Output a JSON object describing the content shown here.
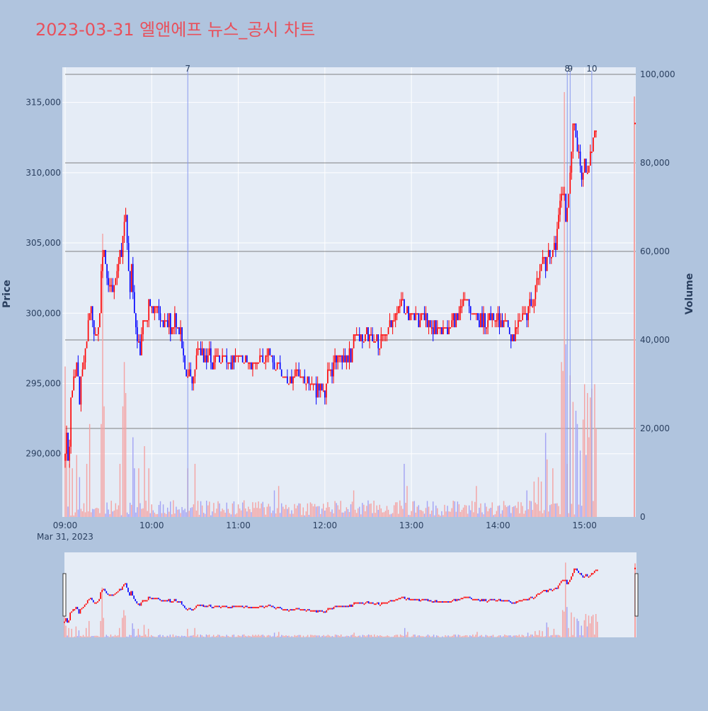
{
  "title": "2023-03-31 엘앤에프 뉴스_공시 차트",
  "colors": {
    "background": "#b0c4de",
    "plot_bg": "#e5ecf6",
    "title": "#e8505b",
    "up": "#ff0000",
    "down": "#0000ff",
    "up_volume": "#f4a3a3",
    "down_volume": "#a3a3f4",
    "news_line": "#8899ee",
    "hline": "#666666"
  },
  "chart_data": {
    "type": "candlestick",
    "title": "2023-03-31 엘앤에프 뉴스_공시 차트",
    "ylabel": "Price",
    "y2label": "Volume",
    "date_label": "Mar 31, 2023",
    "x_ticks": [
      "09:00",
      "10:00",
      "11:00",
      "12:00",
      "13:00",
      "14:00",
      "15:00"
    ],
    "y_ticks": [
      {
        "value": 290000,
        "label": "290,000"
      },
      {
        "value": 295000,
        "label": "295,000"
      },
      {
        "value": 300000,
        "label": "300,000"
      },
      {
        "value": 305000,
        "label": "305,000"
      },
      {
        "value": 310000,
        "label": "310,000"
      },
      {
        "value": 315000,
        "label": "315,000"
      }
    ],
    "y2_ticks": [
      {
        "value": 0,
        "label": "0"
      },
      {
        "value": 20000,
        "label": "20,000"
      },
      {
        "value": 40000,
        "label": "40,000"
      },
      {
        "value": 60000,
        "label": "60,000"
      },
      {
        "value": 80000,
        "label": "80,000"
      },
      {
        "value": 100000,
        "label": "100,000"
      }
    ],
    "ylim": [
      285500,
      317500
    ],
    "y2lim": [
      0,
      100000
    ],
    "xlim_minutes": [
      0,
      395
    ],
    "volume_gridlines": [
      20000,
      40000,
      60000,
      80000,
      100000
    ],
    "price_path": [
      [
        "09:00",
        290000
      ],
      [
        "09:01",
        292000
      ],
      [
        "09:02",
        289000
      ],
      [
        "09:03",
        291000
      ],
      [
        "09:04",
        294500
      ],
      [
        "09:06",
        295000
      ],
      [
        "09:08",
        296500
      ],
      [
        "09:10",
        294000
      ],
      [
        "09:12",
        296000
      ],
      [
        "09:14",
        297500
      ],
      [
        "09:16",
        299500
      ],
      [
        "09:18",
        300000
      ],
      [
        "09:20",
        299000
      ],
      [
        "09:22",
        298500
      ],
      [
        "09:24",
        299500
      ],
      [
        "09:25",
        303000
      ],
      [
        "09:27",
        304500
      ],
      [
        "09:29",
        303000
      ],
      [
        "09:31",
        302000
      ],
      [
        "09:33",
        301000
      ],
      [
        "09:35",
        302500
      ],
      [
        "09:37",
        303500
      ],
      [
        "09:39",
        304500
      ],
      [
        "09:41",
        306500
      ],
      [
        "09:42",
        307000
      ],
      [
        "09:43",
        305000
      ],
      [
        "09:44",
        303000
      ],
      [
        "09:45",
        302000
      ],
      [
        "09:46",
        303500
      ],
      [
        "09:47",
        302000
      ],
      [
        "09:48",
        300000
      ],
      [
        "09:49",
        299000
      ],
      [
        "09:50",
        298000
      ],
      [
        "09:52",
        297500
      ],
      [
        "09:54",
        299000
      ],
      [
        "09:56",
        299000
      ],
      [
        "09:58",
        301000
      ],
      [
        "10:00",
        300500
      ],
      [
        "10:02",
        300000
      ],
      [
        "10:04",
        300500
      ],
      [
        "10:06",
        299500
      ],
      [
        "10:08",
        299000
      ],
      [
        "10:10",
        299500
      ],
      [
        "10:12",
        299500
      ],
      [
        "10:14",
        298500
      ],
      [
        "10:16",
        299500
      ],
      [
        "10:18",
        299000
      ],
      [
        "10:20",
        298500
      ],
      [
        "10:22",
        296500
      ],
      [
        "10:24",
        295500
      ],
      [
        "10:26",
        296000
      ],
      [
        "10:28",
        295500
      ],
      [
        "10:30",
        296000
      ],
      [
        "10:32",
        297500
      ],
      [
        "10:34",
        297000
      ],
      [
        "10:36",
        297000
      ],
      [
        "10:38",
        296500
      ],
      [
        "10:40",
        297000
      ],
      [
        "10:42",
        296000
      ],
      [
        "10:44",
        296500
      ],
      [
        "10:46",
        297500
      ],
      [
        "10:48",
        296500
      ],
      [
        "10:50",
        297000
      ],
      [
        "10:55",
        296500
      ],
      [
        "11:00",
        297000
      ],
      [
        "11:05",
        296500
      ],
      [
        "11:10",
        296500
      ],
      [
        "11:15",
        297000
      ],
      [
        "11:20",
        296500
      ],
      [
        "11:22",
        297500
      ],
      [
        "11:25",
        296000
      ],
      [
        "11:28",
        296500
      ],
      [
        "11:30",
        295500
      ],
      [
        "11:33",
        295500
      ],
      [
        "11:35",
        295000
      ],
      [
        "11:40",
        296000
      ],
      [
        "11:45",
        295500
      ],
      [
        "11:50",
        295000
      ],
      [
        "11:55",
        294500
      ],
      [
        "12:00",
        294500
      ],
      [
        "12:02",
        295500
      ],
      [
        "12:05",
        296000
      ],
      [
        "12:08",
        296500
      ],
      [
        "12:12",
        297000
      ],
      [
        "12:15",
        297000
      ],
      [
        "12:18",
        297000
      ],
      [
        "12:20",
        298000
      ],
      [
        "12:22",
        298500
      ],
      [
        "12:25",
        298500
      ],
      [
        "12:28",
        298500
      ],
      [
        "12:32",
        298500
      ],
      [
        "12:35",
        298000
      ],
      [
        "12:40",
        298000
      ],
      [
        "12:45",
        299000
      ],
      [
        "12:48",
        299500
      ],
      [
        "12:50",
        300000
      ],
      [
        "12:53",
        301500
      ],
      [
        "12:55",
        300500
      ],
      [
        "12:58",
        300000
      ],
      [
        "13:00",
        300000
      ],
      [
        "13:05",
        299500
      ],
      [
        "13:10",
        299500
      ],
      [
        "13:15",
        299000
      ],
      [
        "13:20",
        299000
      ],
      [
        "13:25",
        299000
      ],
      [
        "13:30",
        299500
      ],
      [
        "13:33",
        300000
      ],
      [
        "13:36",
        301000
      ],
      [
        "13:40",
        300500
      ],
      [
        "13:45",
        299500
      ],
      [
        "13:50",
        299500
      ],
      [
        "13:55",
        299500
      ],
      [
        "14:00",
        299500
      ],
      [
        "14:05",
        299500
      ],
      [
        "14:08",
        299000
      ],
      [
        "14:10",
        298000
      ],
      [
        "14:12",
        298500
      ],
      [
        "14:15",
        299500
      ],
      [
        "14:18",
        300000
      ],
      [
        "14:20",
        300000
      ],
      [
        "14:22",
        300500
      ],
      [
        "14:25",
        301500
      ],
      [
        "14:28",
        303000
      ],
      [
        "14:30",
        303500
      ],
      [
        "14:33",
        303500
      ],
      [
        "14:35",
        304000
      ],
      [
        "14:38",
        304500
      ],
      [
        "14:40",
        305000
      ],
      [
        "14:42",
        306500
      ],
      [
        "14:44",
        309000
      ],
      [
        "14:46",
        308500
      ],
      [
        "14:47",
        306000
      ],
      [
        "14:48",
        307000
      ],
      [
        "14:50",
        310000
      ],
      [
        "14:52",
        313500
      ],
      [
        "14:54",
        312500
      ],
      [
        "14:56",
        311000
      ],
      [
        "14:58",
        310000
      ],
      [
        "15:00",
        310500
      ],
      [
        "15:02",
        310000
      ],
      [
        "15:04",
        311000
      ],
      [
        "15:06",
        312500
      ],
      [
        "15:08",
        313000
      ]
    ],
    "volume_spikes": [
      [
        "09:00",
        34000
      ],
      [
        "09:01",
        15000
      ],
      [
        "09:03",
        12000
      ],
      [
        "09:05",
        11000
      ],
      [
        "09:08",
        14000
      ],
      [
        "09:10",
        9000
      ],
      [
        "09:15",
        12000
      ],
      [
        "09:17",
        21000
      ],
      [
        "09:25",
        21000
      ],
      [
        "09:26",
        64000
      ],
      [
        "09:27",
        25000
      ],
      [
        "09:38",
        12000
      ],
      [
        "09:40",
        25000
      ],
      [
        "09:41",
        35000
      ],
      [
        "09:42",
        28000
      ],
      [
        "09:47",
        18000
      ],
      [
        "09:48",
        11000
      ],
      [
        "09:51",
        11000
      ],
      [
        "09:55",
        16000
      ],
      [
        "09:58",
        11000
      ],
      [
        "10:25",
        11000
      ],
      [
        "10:30",
        12000
      ],
      [
        "11:25",
        6000
      ],
      [
        "11:28",
        7000
      ],
      [
        "12:20",
        6000
      ],
      [
        "12:55",
        12000
      ],
      [
        "12:57",
        7000
      ],
      [
        "13:45",
        7000
      ],
      [
        "14:20",
        6000
      ],
      [
        "14:25",
        8000
      ],
      [
        "14:28",
        9000
      ],
      [
        "14:30",
        8000
      ],
      [
        "14:33",
        19000
      ],
      [
        "14:34",
        13000
      ],
      [
        "14:38",
        11000
      ],
      [
        "14:44",
        35000
      ],
      [
        "14:45",
        33000
      ],
      [
        "14:46",
        96000
      ],
      [
        "14:47",
        39000
      ],
      [
        "14:48",
        12000
      ],
      [
        "14:50",
        32000
      ],
      [
        "14:52",
        26000
      ],
      [
        "14:54",
        24000
      ],
      [
        "14:55",
        21000
      ],
      [
        "14:57",
        15000
      ],
      [
        "14:59",
        22000
      ],
      [
        "15:00",
        30000
      ],
      [
        "15:01",
        14000
      ],
      [
        "15:02",
        28000
      ],
      [
        "15:03",
        18000
      ],
      [
        "15:04",
        27000
      ],
      [
        "15:05",
        29000
      ],
      [
        "15:07",
        30000
      ],
      [
        "15:08",
        20000
      ],
      [
        "15:30",
        95000
      ]
    ],
    "news_markers": [
      {
        "label": "7",
        "time": "10:25"
      },
      {
        "label": "8",
        "time": "14:48"
      },
      {
        "label": "9",
        "time": "14:50"
      },
      {
        "label": "10",
        "time": "15:05"
      }
    ],
    "last_price": 313500,
    "last_volume": 95000
  }
}
